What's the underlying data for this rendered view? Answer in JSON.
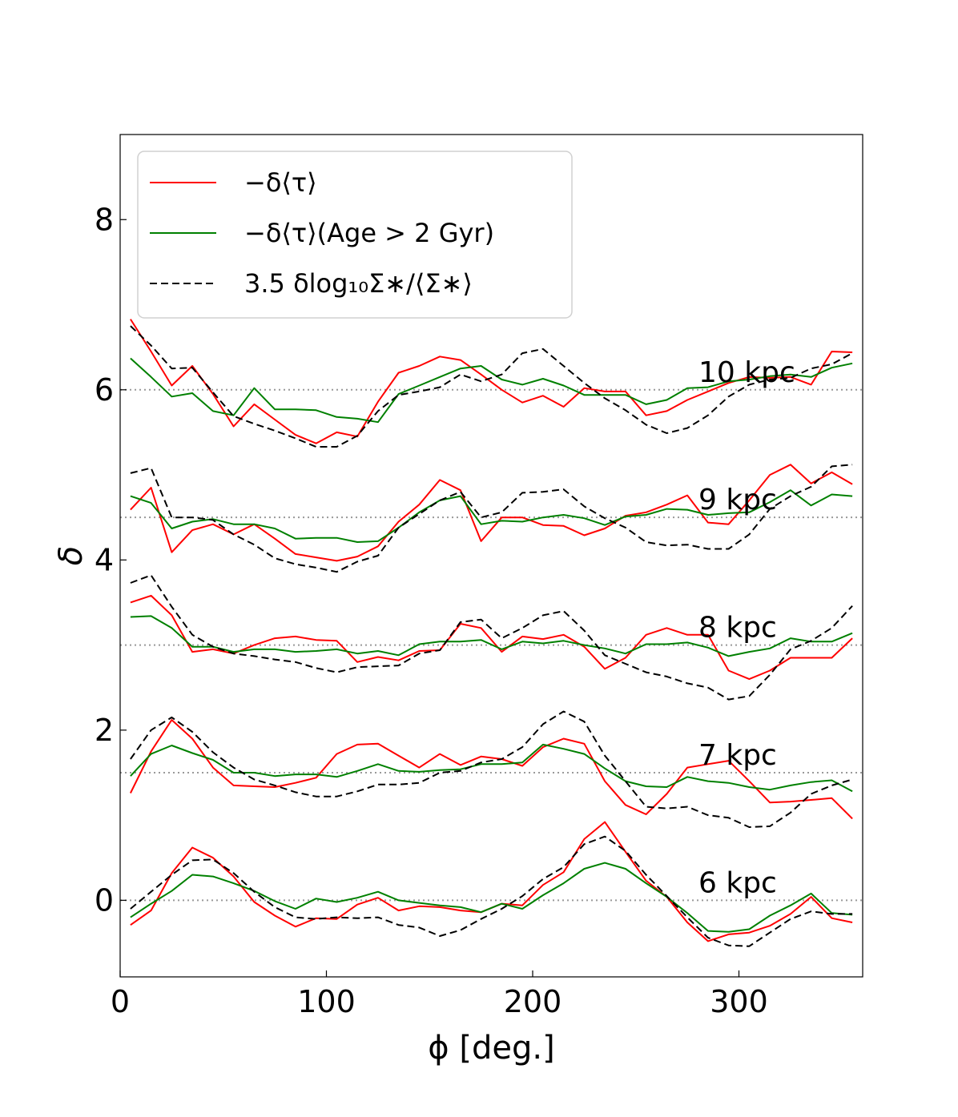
{
  "chart_data": {
    "type": "line",
    "xlabel": "ϕ [deg.]",
    "ylabel": "δ",
    "xlim": [
      0,
      360
    ],
    "ylim": [
      -0.9,
      9.0
    ],
    "xticks": [
      0,
      100,
      200,
      300
    ],
    "yticks": [
      0,
      2,
      4,
      6,
      8
    ],
    "legend": {
      "placement": "top-left",
      "entries": [
        {
          "id": "red",
          "label": "−δ⟨τ⟩",
          "color": "#ff0000",
          "dash": "solid"
        },
        {
          "id": "green",
          "label": "−δ⟨τ⟩(Age > 2 Gyr)",
          "color": "#008000",
          "dash": "solid"
        },
        {
          "id": "black",
          "label": "3.5 δlog₁₀Σ∗/⟨Σ∗⟩",
          "color": "#000000",
          "dash": "dashed"
        }
      ]
    },
    "x": [
      5,
      15,
      25,
      35,
      45,
      55,
      65,
      75,
      85,
      95,
      105,
      115,
      125,
      135,
      145,
      155,
      165,
      175,
      185,
      195,
      205,
      215,
      225,
      235,
      245,
      255,
      265,
      275,
      285,
      295,
      305,
      315,
      325,
      335,
      345,
      355
    ],
    "groups": [
      {
        "label": "10 kpc",
        "baseline": 6.0,
        "red": [
          6.83,
          6.45,
          6.05,
          6.28,
          5.95,
          5.57,
          5.83,
          5.65,
          5.47,
          5.37,
          5.5,
          5.45,
          5.86,
          6.2,
          6.28,
          6.39,
          6.35,
          6.18,
          6.0,
          5.85,
          5.93,
          5.8,
          6.02,
          5.98,
          5.98,
          5.7,
          5.75,
          5.88,
          5.98,
          6.08,
          6.15,
          6.14,
          6.15,
          6.06,
          6.45,
          6.44
        ],
        "green": [
          6.37,
          6.15,
          5.92,
          5.96,
          5.75,
          5.7,
          6.02,
          5.77,
          5.77,
          5.76,
          5.68,
          5.66,
          5.62,
          5.95,
          6.05,
          6.15,
          6.25,
          6.28,
          6.12,
          6.06,
          6.13,
          6.05,
          5.94,
          5.94,
          5.94,
          5.83,
          5.88,
          6.02,
          6.03,
          6.1,
          6.12,
          6.16,
          6.18,
          6.15,
          6.26,
          6.31
        ],
        "black": [
          6.75,
          6.52,
          6.25,
          6.26,
          5.97,
          5.69,
          5.6,
          5.52,
          5.43,
          5.33,
          5.33,
          5.46,
          5.75,
          5.94,
          5.98,
          6.03,
          6.18,
          6.1,
          6.18,
          6.43,
          6.48,
          6.28,
          6.08,
          5.9,
          5.76,
          5.59,
          5.49,
          5.55,
          5.7,
          5.92,
          6.06,
          6.12,
          6.14,
          6.25,
          6.3,
          6.43
        ]
      },
      {
        "label": "9 kpc",
        "baseline": 4.5,
        "red": [
          4.59,
          4.85,
          4.09,
          4.35,
          4.42,
          4.3,
          4.42,
          4.25,
          4.07,
          4.03,
          3.99,
          4.04,
          4.16,
          4.45,
          4.65,
          4.94,
          4.82,
          4.22,
          4.5,
          4.5,
          4.41,
          4.4,
          4.29,
          4.37,
          4.52,
          4.56,
          4.65,
          4.76,
          4.44,
          4.42,
          4.7,
          5.0,
          5.12,
          4.9,
          5.03,
          4.89
        ],
        "green": [
          4.75,
          4.67,
          4.37,
          4.45,
          4.48,
          4.42,
          4.42,
          4.37,
          4.25,
          4.26,
          4.26,
          4.21,
          4.22,
          4.38,
          4.56,
          4.7,
          4.75,
          4.42,
          4.46,
          4.45,
          4.5,
          4.53,
          4.49,
          4.41,
          4.51,
          4.53,
          4.6,
          4.59,
          4.53,
          4.55,
          4.56,
          4.68,
          4.82,
          4.64,
          4.77,
          4.75
        ],
        "black": [
          5.02,
          5.08,
          4.5,
          4.5,
          4.47,
          4.3,
          4.18,
          4.02,
          3.95,
          3.91,
          3.86,
          3.98,
          4.05,
          4.38,
          4.54,
          4.7,
          4.8,
          4.5,
          4.56,
          4.79,
          4.8,
          4.83,
          4.63,
          4.49,
          4.38,
          4.21,
          4.17,
          4.18,
          4.13,
          4.13,
          4.3,
          4.6,
          4.75,
          4.86,
          5.1,
          5.12
        ]
      },
      {
        "label": "8 kpc",
        "baseline": 3.0,
        "red": [
          3.5,
          3.58,
          3.35,
          2.92,
          2.95,
          2.9,
          3.0,
          3.08,
          3.1,
          3.06,
          3.05,
          2.8,
          2.86,
          2.82,
          2.93,
          2.94,
          3.25,
          3.2,
          2.92,
          3.1,
          3.07,
          3.12,
          2.98,
          2.72,
          2.85,
          3.12,
          3.2,
          3.12,
          3.12,
          2.7,
          2.6,
          2.7,
          2.85,
          2.85,
          2.85,
          3.08
        ],
        "green": [
          3.33,
          3.34,
          3.2,
          2.98,
          2.98,
          2.92,
          2.95,
          2.95,
          2.92,
          2.93,
          2.95,
          2.9,
          2.93,
          2.88,
          3.01,
          3.04,
          3.04,
          3.06,
          2.95,
          3.04,
          3.02,
          3.05,
          3.0,
          2.96,
          2.9,
          3.01,
          3.01,
          3.03,
          2.97,
          2.87,
          2.92,
          2.96,
          3.08,
          3.04,
          3.04,
          3.14
        ],
        "black": [
          3.73,
          3.82,
          3.45,
          3.12,
          2.98,
          2.9,
          2.87,
          2.83,
          2.8,
          2.73,
          2.68,
          2.74,
          2.75,
          2.76,
          2.9,
          2.94,
          3.27,
          3.3,
          3.08,
          3.2,
          3.35,
          3.4,
          3.17,
          2.88,
          2.78,
          2.68,
          2.63,
          2.55,
          2.5,
          2.36,
          2.4,
          2.65,
          2.95,
          3.05,
          3.2,
          3.46
        ]
      },
      {
        "label": "7 kpc",
        "baseline": 1.5,
        "red": [
          1.26,
          1.75,
          2.12,
          1.9,
          1.56,
          1.35,
          1.34,
          1.33,
          1.38,
          1.44,
          1.72,
          1.83,
          1.84,
          1.7,
          1.56,
          1.72,
          1.59,
          1.69,
          1.66,
          1.58,
          1.8,
          1.9,
          1.84,
          1.4,
          1.12,
          1.01,
          1.25,
          1.56,
          1.6,
          1.64,
          1.4,
          1.15,
          1.16,
          1.18,
          1.2,
          0.96
        ],
        "green": [
          1.46,
          1.72,
          1.82,
          1.73,
          1.65,
          1.5,
          1.5,
          1.46,
          1.48,
          1.48,
          1.45,
          1.52,
          1.6,
          1.52,
          1.51,
          1.53,
          1.54,
          1.6,
          1.6,
          1.62,
          1.83,
          1.78,
          1.72,
          1.55,
          1.4,
          1.34,
          1.33,
          1.45,
          1.4,
          1.38,
          1.33,
          1.3,
          1.35,
          1.39,
          1.41,
          1.28
        ],
        "black": [
          1.66,
          2.0,
          2.15,
          1.98,
          1.74,
          1.56,
          1.42,
          1.35,
          1.27,
          1.22,
          1.22,
          1.28,
          1.36,
          1.36,
          1.38,
          1.5,
          1.52,
          1.62,
          1.66,
          1.8,
          2.07,
          2.22,
          2.1,
          1.7,
          1.4,
          1.1,
          1.08,
          1.1,
          1.0,
          0.97,
          0.86,
          0.87,
          1.03,
          1.25,
          1.35,
          1.42
        ]
      },
      {
        "label": "6 kpc",
        "baseline": 0.0,
        "red": [
          -0.29,
          -0.12,
          0.32,
          0.62,
          0.5,
          0.28,
          -0.02,
          -0.18,
          -0.31,
          -0.21,
          -0.22,
          -0.05,
          0.03,
          -0.12,
          -0.07,
          -0.08,
          -0.12,
          -0.14,
          -0.04,
          -0.06,
          0.18,
          0.33,
          0.72,
          0.92,
          0.57,
          0.23,
          0.04,
          -0.26,
          -0.48,
          -0.4,
          -0.38,
          -0.3,
          -0.16,
          0.04,
          -0.21,
          -0.26
        ],
        "green": [
          -0.2,
          -0.04,
          0.11,
          0.3,
          0.28,
          0.2,
          0.11,
          -0.01,
          -0.1,
          0.02,
          -0.02,
          0.03,
          0.1,
          0.0,
          -0.03,
          -0.06,
          -0.08,
          -0.14,
          -0.04,
          -0.1,
          0.06,
          0.2,
          0.37,
          0.44,
          0.37,
          0.2,
          0.04,
          -0.15,
          -0.36,
          -0.37,
          -0.34,
          -0.18,
          -0.06,
          0.08,
          -0.15,
          -0.17
        ],
        "black": [
          -0.1,
          0.1,
          0.3,
          0.47,
          0.48,
          0.32,
          0.1,
          -0.08,
          -0.2,
          -0.22,
          -0.2,
          -0.21,
          -0.2,
          -0.29,
          -0.32,
          -0.42,
          -0.35,
          -0.22,
          -0.1,
          0.05,
          0.25,
          0.39,
          0.66,
          0.75,
          0.58,
          0.3,
          0.05,
          -0.2,
          -0.44,
          -0.53,
          -0.54,
          -0.38,
          -0.22,
          -0.13,
          -0.16,
          -0.16
        ]
      }
    ]
  }
}
